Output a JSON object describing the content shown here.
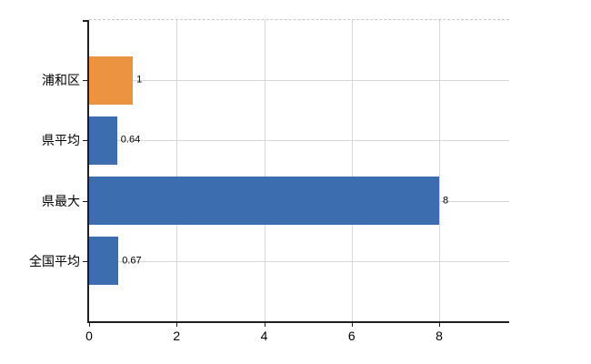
{
  "chart_data": {
    "type": "bar",
    "orientation": "horizontal",
    "title": "",
    "xlabel": "",
    "ylabel": "",
    "categories": [
      "浦和区",
      "県平均",
      "県最大",
      "全国平均"
    ],
    "values": [
      1,
      0.64,
      8,
      0.67
    ],
    "value_labels": [
      "1",
      "0.64",
      "8",
      "0.67"
    ],
    "bar_colors": [
      "#EB9340",
      "#3B6DAF",
      "#3B6DAF",
      "#3B6DAF"
    ],
    "xticks": [
      0,
      2,
      4,
      6,
      8
    ],
    "xtick_labels": [
      "0",
      "2",
      "4",
      "6",
      "8"
    ],
    "xlim": [
      0,
      9.6
    ],
    "grid": true,
    "legend": false,
    "colors": {
      "bar_default": "#3B6DAF",
      "bar_highlight": "#EB9340",
      "gridline_vertical": "#d6d6d6",
      "gridline_horizontal": "#d4d8d2",
      "top_border": "#c6c6c6",
      "axis": "#1f1f1f",
      "text": "#000000",
      "background": "#ffffff"
    }
  }
}
